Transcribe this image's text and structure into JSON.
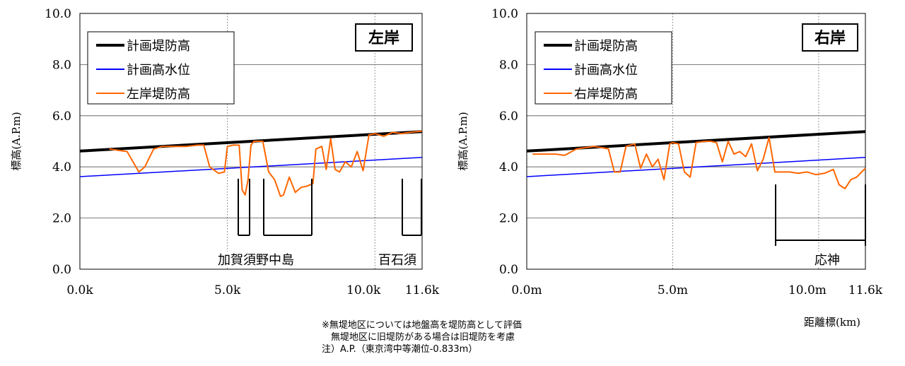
{
  "chart_data": [
    {
      "type": "line",
      "panel_label": "左岸",
      "ylabel": "標高(A.P.m)",
      "ylim": [
        0,
        10
      ],
      "xlim": [
        0,
        11.6
      ],
      "y_ticks": [
        "0.0",
        "2.0",
        "4.0",
        "6.0",
        "8.0",
        "10.0"
      ],
      "x_ticks": [
        {
          "x": 0,
          "label": "0.0k"
        },
        {
          "x": 5,
          "label": "5.0k"
        },
        {
          "x": 10,
          "label": "10.0k"
        },
        {
          "x": 11.6,
          "label": "11.6k"
        }
      ],
      "legend": [
        "計画堤防高",
        "計画高水位",
        "左岸堤防高"
      ],
      "series": [
        {
          "name": "計画堤防高",
          "color": "#000000",
          "x": [
            0,
            11.6
          ],
          "y": [
            4.62,
            5.38
          ]
        },
        {
          "name": "計画高水位",
          "color": "#0000ff",
          "x": [
            0,
            11.6
          ],
          "y": [
            3.62,
            4.37
          ]
        },
        {
          "name": "左岸堤防高",
          "color": "#ff6600",
          "x": [
            1.0,
            1.3,
            1.6,
            1.8,
            2.0,
            2.2,
            2.5,
            2.8,
            3.2,
            3.6,
            4.0,
            4.2,
            4.4,
            4.7,
            4.9,
            5.0,
            5.2,
            5.4,
            5.5,
            5.6,
            5.7,
            5.8,
            5.9,
            6.0,
            6.2,
            6.4,
            6.6,
            6.8,
            6.9,
            7.1,
            7.3,
            7.5,
            7.7,
            7.9,
            8.0,
            8.2,
            8.35,
            8.5,
            8.65,
            8.8,
            9.0,
            9.2,
            9.4,
            9.6,
            9.8,
            10.0,
            10.3,
            10.6,
            10.9,
            11.2,
            11.6
          ],
          "y": [
            4.7,
            4.65,
            4.6,
            4.2,
            3.8,
            4.0,
            4.7,
            4.8,
            4.8,
            4.8,
            4.85,
            4.85,
            4.0,
            3.75,
            3.8,
            4.8,
            4.85,
            4.85,
            3.1,
            2.9,
            3.5,
            4.85,
            5.0,
            5.0,
            5.0,
            3.8,
            3.5,
            2.85,
            2.9,
            3.6,
            3.0,
            3.2,
            3.25,
            3.35,
            4.7,
            4.8,
            3.9,
            5.1,
            3.9,
            3.8,
            4.2,
            4.0,
            4.6,
            3.85,
            5.25,
            5.3,
            5.2,
            5.35,
            5.3,
            5.35,
            5.4
          ]
        }
      ],
      "annotations": [
        "加賀須野中島",
        "百石須"
      ]
    },
    {
      "type": "line",
      "panel_label": "右岸",
      "ylabel": "標高(A.P.m)",
      "ylim": [
        0,
        10
      ],
      "xlim": [
        0,
        11.6
      ],
      "y_ticks": [
        "0.0",
        "2.0",
        "4.0",
        "6.0",
        "8.0",
        "10.0"
      ],
      "x_ticks": [
        {
          "x": 0,
          "label": "0.0m"
        },
        {
          "x": 5,
          "label": "5.0m"
        },
        {
          "x": 10,
          "label": "10.0m"
        },
        {
          "x": 11.6,
          "label": "11.6k"
        }
      ],
      "legend": [
        "計画堤防高",
        "計画高水位",
        "右岸堤防高"
      ],
      "series": [
        {
          "name": "計画堤防高",
          "color": "#000000",
          "x": [
            0,
            11.6
          ],
          "y": [
            4.62,
            5.38
          ]
        },
        {
          "name": "計画高水位",
          "color": "#0000ff",
          "x": [
            0,
            11.6
          ],
          "y": [
            3.62,
            4.37
          ]
        },
        {
          "name": "右岸堤防高",
          "color": "#ff6600",
          "x": [
            0.2,
            0.6,
            1.0,
            1.3,
            1.7,
            2.0,
            2.3,
            2.6,
            2.8,
            3.0,
            3.2,
            3.4,
            3.7,
            3.9,
            4.1,
            4.3,
            4.5,
            4.7,
            4.9,
            5.0,
            5.2,
            5.4,
            5.6,
            5.8,
            6.1,
            6.3,
            6.5,
            6.7,
            6.9,
            7.1,
            7.3,
            7.5,
            7.7,
            7.9,
            8.1,
            8.3,
            8.5,
            8.7,
            9.0,
            9.3,
            9.6,
            9.9,
            10.2,
            10.5,
            10.7,
            10.9,
            11.1,
            11.3,
            11.6
          ],
          "y": [
            4.5,
            4.5,
            4.5,
            4.45,
            4.7,
            4.75,
            4.8,
            4.75,
            4.7,
            3.8,
            3.8,
            4.8,
            4.9,
            3.95,
            4.5,
            4.0,
            4.3,
            3.5,
            4.9,
            4.95,
            4.9,
            3.8,
            3.6,
            4.95,
            5.0,
            5.0,
            4.95,
            4.2,
            5.0,
            4.5,
            4.6,
            4.4,
            4.9,
            3.85,
            4.3,
            5.15,
            3.8,
            3.8,
            3.8,
            3.75,
            3.8,
            3.7,
            3.75,
            3.9,
            3.3,
            3.15,
            3.5,
            3.6,
            3.95
          ]
        }
      ],
      "annotations": [
        "応神"
      ]
    }
  ],
  "xaxis_title": "距離標(km)",
  "notes": [
    "※無堤地区については地盤高を堤防高として評価",
    "　無堤地区に旧堤防がある場合は旧堤防を考慮",
    "注）A.P.（東京湾中等潮位-0.833m）"
  ]
}
